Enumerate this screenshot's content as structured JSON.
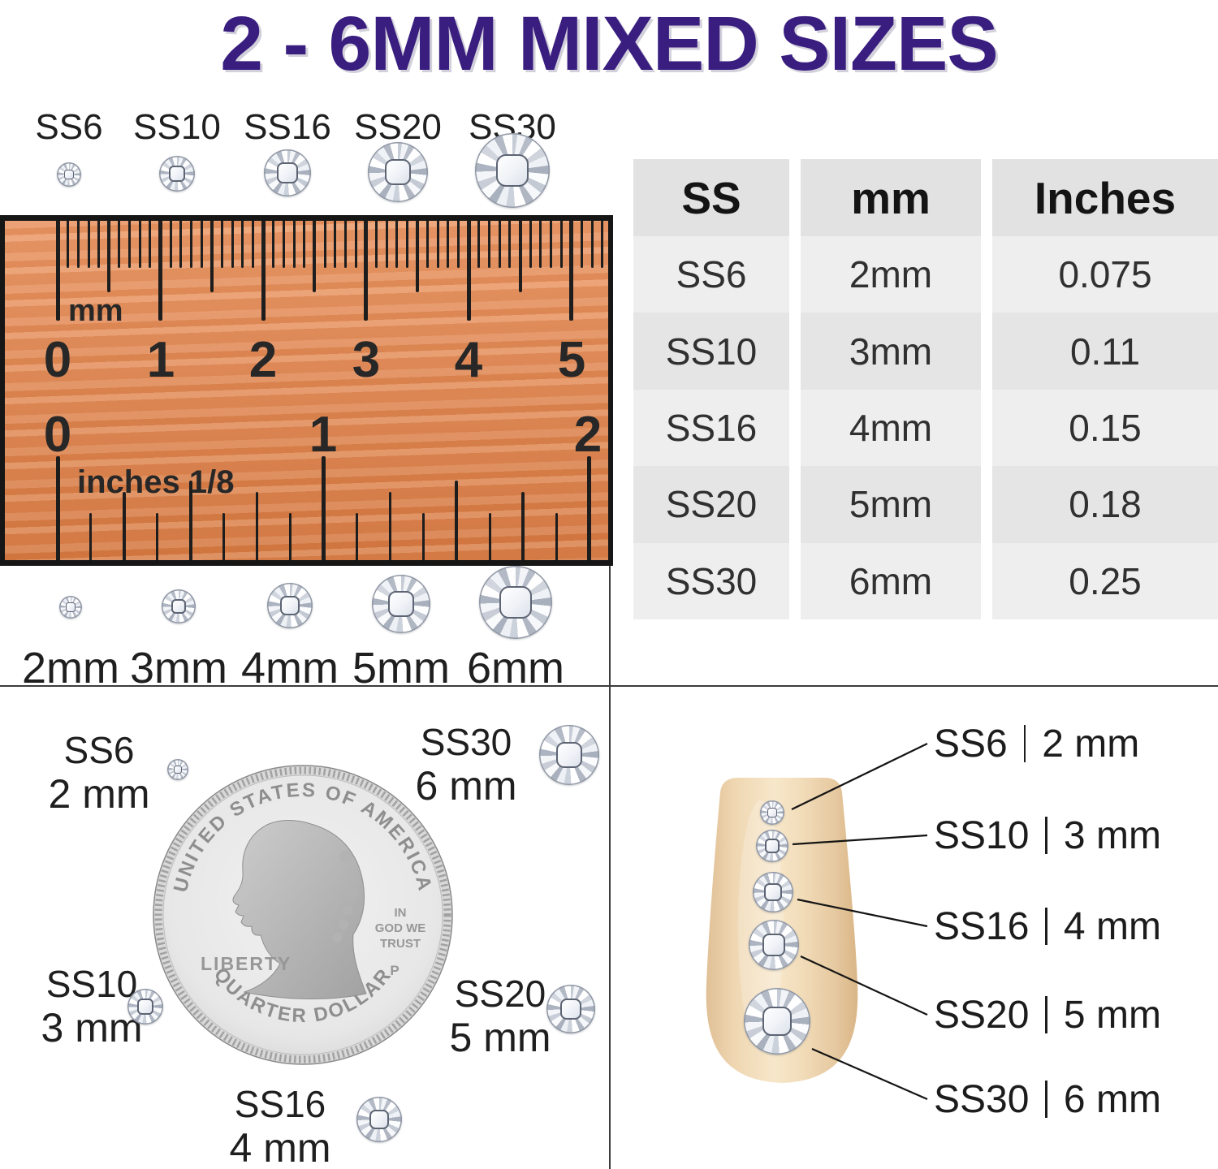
{
  "title": {
    "text": "2 - 6MM MIXED SIZES"
  },
  "top_sizes": {
    "labels": [
      "SS6",
      "SS10",
      "SS16",
      "SS20",
      "SS30"
    ]
  },
  "ruler": {
    "unit_top": "mm",
    "cm_numbers": [
      "0",
      "1",
      "2",
      "3",
      "4",
      "5"
    ],
    "unit_bottom": "inches 1/8",
    "inch_numbers": [
      "0",
      "1",
      "2"
    ]
  },
  "bottom_sizes": {
    "labels": [
      "2mm",
      "3mm",
      "4mm",
      "5mm",
      "6mm"
    ]
  },
  "size_table": {
    "headers": [
      "SS",
      "mm",
      "Inches"
    ],
    "rows": [
      [
        "SS6",
        "2mm",
        "0.075"
      ],
      [
        "SS10",
        "3mm",
        "0.11"
      ],
      [
        "SS16",
        "4mm",
        "0.15"
      ],
      [
        "SS20",
        "5mm",
        "0.18"
      ],
      [
        "SS30",
        "6mm",
        "0.25"
      ]
    ]
  },
  "coin_panel": {
    "coin": {
      "top_legend": "UNITED STATES OF AMERICA",
      "bottom_legend": "QUARTER DOLLAR",
      "liberty": "LIBERTY",
      "motto_lines": [
        "IN",
        "GOD WE",
        "TRUST"
      ],
      "mint_mark": "P"
    },
    "labels": {
      "ss6": [
        "SS6",
        "2 mm"
      ],
      "ss30": [
        "SS30",
        "6 mm"
      ],
      "ss10": [
        "SS10",
        "3 mm"
      ],
      "ss20": [
        "SS20",
        "5 mm"
      ],
      "ss16": [
        "SS16",
        "4 mm"
      ]
    }
  },
  "nail_panel": {
    "callouts": [
      {
        "code": "SS6",
        "size": "2 mm"
      },
      {
        "code": "SS10",
        "size": "3 mm"
      },
      {
        "code": "SS16",
        "size": "4 mm"
      },
      {
        "code": "SS20",
        "size": "5 mm"
      },
      {
        "code": "SS30",
        "size": "6 mm"
      }
    ]
  },
  "colors": {
    "accent": "#391d7f",
    "ruler_orange": "#e2834d",
    "nail_beige": "#f2dfbe",
    "table_header_bg": "#e2e2e2",
    "table_row_light": "#eeeeee",
    "table_row_dark": "#e5e5e5"
  }
}
